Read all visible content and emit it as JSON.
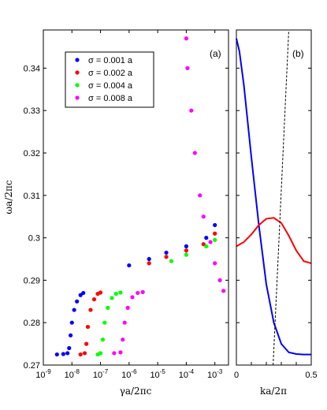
{
  "chart_data": [
    {
      "type": "scatter",
      "panel_label": "(a)",
      "xlabel": "γa/2πc",
      "ylabel": "ωa/2πc",
      "x_scale": "log",
      "xlim": [
        1e-09,
        0.003
      ],
      "ylim": [
        0.27,
        0.349
      ],
      "x_ticks": [
        {
          "value": 1e-09,
          "base": "10",
          "exp": "-9"
        },
        {
          "value": 1e-08,
          "base": "10",
          "exp": "-8"
        },
        {
          "value": 1e-07,
          "base": "10",
          "exp": "-7"
        },
        {
          "value": 1e-06,
          "base": "10",
          "exp": "-6"
        },
        {
          "value": 1e-05,
          "base": "10",
          "exp": "-5"
        },
        {
          "value": 0.0001,
          "base": "10",
          "exp": "-4"
        },
        {
          "value": 0.001,
          "base": "10",
          "exp": "-3"
        }
      ],
      "y_ticks": [
        {
          "value": 0.27,
          "label": "0.27"
        },
        {
          "value": 0.28,
          "label": "0.28"
        },
        {
          "value": 0.29,
          "label": "0.29"
        },
        {
          "value": 0.3,
          "label": "0.3"
        },
        {
          "value": 0.31,
          "label": "0.31"
        },
        {
          "value": 0.32,
          "label": "0.32"
        },
        {
          "value": 0.33,
          "label": "0.33"
        },
        {
          "value": 0.34,
          "label": "0.34"
        }
      ],
      "legend_position": "top-left",
      "series": [
        {
          "name": "σ = 0.001 a",
          "color": "#0000ff",
          "points": [
            [
              3e-09,
              0.2725
            ],
            [
              5e-09,
              0.2726
            ],
            [
              7e-09,
              0.2728
            ],
            [
              8e-09,
              0.274
            ],
            [
              9e-09,
              0.277
            ],
            [
              1e-08,
              0.28
            ],
            [
              1.2e-08,
              0.283
            ],
            [
              1.5e-08,
              0.285
            ],
            [
              2e-08,
              0.2865
            ],
            [
              2.5e-08,
              0.287
            ],
            [
              1e-06,
              0.2935
            ],
            [
              5e-06,
              0.295
            ],
            [
              2e-05,
              0.2965
            ],
            [
              0.0001,
              0.298
            ],
            [
              0.0005,
              0.3
            ],
            [
              0.001,
              0.303
            ]
          ]
        },
        {
          "name": "σ = 0.002 a",
          "color": "#ff0000",
          "points": [
            [
              2e-08,
              0.2725
            ],
            [
              2.8e-08,
              0.2728
            ],
            [
              3.2e-08,
              0.275
            ],
            [
              3.6e-08,
              0.279
            ],
            [
              4.5e-08,
              0.283
            ],
            [
              6e-08,
              0.2855
            ],
            [
              8e-08,
              0.2868
            ],
            [
              1e-07,
              0.2871
            ],
            [
              5e-06,
              0.294
            ],
            [
              2e-05,
              0.2955
            ],
            [
              0.0001,
              0.297
            ],
            [
              0.0004,
              0.2985
            ],
            [
              0.001,
              0.301
            ]
          ]
        },
        {
          "name": "σ = 0.004 a",
          "color": "#00ff00",
          "points": [
            [
              8e-08,
              0.2725
            ],
            [
              1e-07,
              0.2728
            ],
            [
              1.2e-07,
              0.276
            ],
            [
              1.4e-07,
              0.28
            ],
            [
              1.8e-07,
              0.2835
            ],
            [
              2.5e-07,
              0.2858
            ],
            [
              3.5e-07,
              0.2868
            ],
            [
              5e-07,
              0.2871
            ],
            [
              3e-05,
              0.2945
            ],
            [
              0.0001,
              0.296
            ],
            [
              0.0005,
              0.298
            ],
            [
              0.001,
              0.2995
            ]
          ]
        },
        {
          "name": "σ = 0.008 a",
          "color": "#ff00ff",
          "points": [
            [
              3e-07,
              0.2728
            ],
            [
              5e-07,
              0.273
            ],
            [
              6e-07,
              0.276
            ],
            [
              7e-07,
              0.28
            ],
            [
              9e-07,
              0.2835
            ],
            [
              1.3e-06,
              0.286
            ],
            [
              2e-06,
              0.287
            ],
            [
              3e-06,
              0.2872
            ],
            [
              0.0001,
              0.347
            ],
            [
              0.00011,
              0.34
            ],
            [
              0.00015,
              0.33
            ],
            [
              0.0002,
              0.32
            ],
            [
              0.0003,
              0.31
            ],
            [
              0.0004,
              0.305
            ],
            [
              0.0007,
              0.299
            ],
            [
              0.001,
              0.294
            ],
            [
              0.0015,
              0.29
            ],
            [
              0.002,
              0.2875
            ]
          ]
        }
      ]
    },
    {
      "type": "line",
      "panel_label": "(b)",
      "xlabel": "ka/2π",
      "xlim": [
        0,
        0.5
      ],
      "ylim": [
        0.27,
        0.349
      ],
      "x_ticks": [
        {
          "value": 0,
          "label": "0"
        },
        {
          "value": 0.5,
          "label": "0.5"
        }
      ],
      "series": [
        {
          "color": "#0000ff",
          "style": "solid",
          "points": [
            [
              0.0,
              0.347
            ],
            [
              0.02,
              0.344
            ],
            [
              0.05,
              0.336
            ],
            [
              0.1,
              0.319
            ],
            [
              0.15,
              0.303
            ],
            [
              0.2,
              0.289
            ],
            [
              0.25,
              0.28
            ],
            [
              0.3,
              0.275
            ],
            [
              0.35,
              0.273
            ],
            [
              0.4,
              0.2726
            ],
            [
              0.45,
              0.2725
            ],
            [
              0.5,
              0.2725
            ]
          ]
        },
        {
          "color": "#ff0000",
          "style": "solid",
          "points": [
            [
              0.0,
              0.298
            ],
            [
              0.05,
              0.299
            ],
            [
              0.1,
              0.3008
            ],
            [
              0.15,
              0.303
            ],
            [
              0.2,
              0.3045
            ],
            [
              0.25,
              0.3047
            ],
            [
              0.3,
              0.3035
            ],
            [
              0.35,
              0.3005
            ],
            [
              0.4,
              0.297
            ],
            [
              0.45,
              0.2945
            ],
            [
              0.5,
              0.294
            ]
          ]
        },
        {
          "color": "#000000",
          "style": "dashed",
          "points": [
            [
              0.245,
              0.27
            ],
            [
              0.35,
              0.349
            ]
          ]
        }
      ]
    }
  ]
}
